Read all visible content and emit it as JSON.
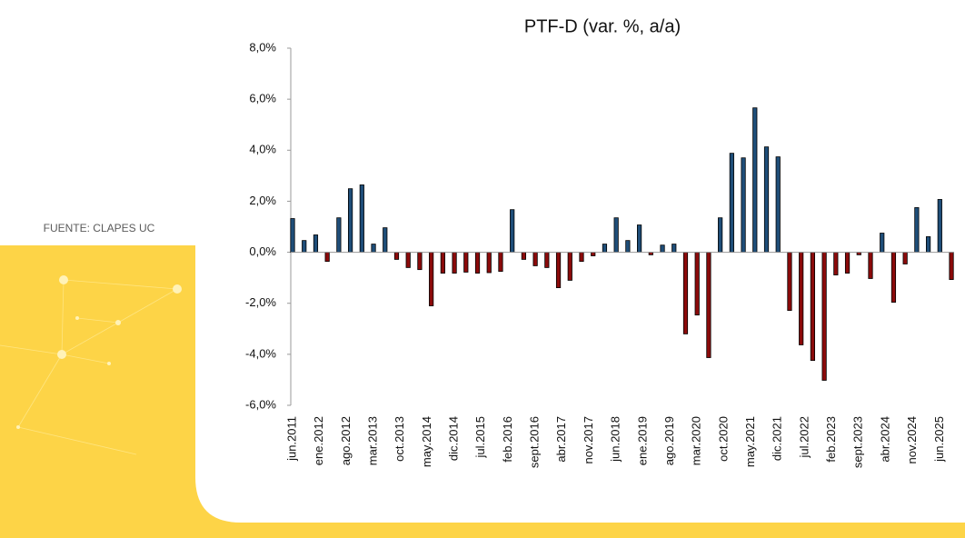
{
  "chart_data": {
    "type": "bar",
    "title": "PTF-D (var. %, a/a)",
    "source": "FUENTE: CLAPES UC",
    "x": [
      "2011-06",
      "2011-09",
      "2011-12",
      "2012-03",
      "2012-06",
      "2012-09",
      "2012-12",
      "2013-03",
      "2013-06",
      "2013-09",
      "2013-12",
      "2014-03",
      "2014-06",
      "2014-09",
      "2014-12",
      "2015-03",
      "2015-06",
      "2015-09",
      "2015-12",
      "2016-03",
      "2016-06",
      "2016-09",
      "2016-12",
      "2017-03",
      "2017-06",
      "2017-09",
      "2017-12",
      "2018-03",
      "2018-06",
      "2018-09",
      "2018-12",
      "2019-03",
      "2019-06",
      "2019-09",
      "2019-12",
      "2020-03",
      "2020-06",
      "2020-09",
      "2020-12",
      "2021-03",
      "2021-06",
      "2021-09",
      "2021-12",
      "2022-03",
      "2022-06",
      "2022-09",
      "2022-12",
      "2023-03",
      "2023-06",
      "2023-09",
      "2023-12",
      "2024-03",
      "2024-06",
      "2024-09",
      "2024-12",
      "2025-03",
      "2025-06",
      "2025-09"
    ],
    "values": [
      1.32,
      0.46,
      0.68,
      -0.36,
      1.35,
      2.49,
      2.64,
      0.32,
      0.96,
      -0.28,
      -0.6,
      -0.68,
      -2.1,
      -0.82,
      -0.82,
      -0.78,
      -0.82,
      -0.8,
      -0.75,
      1.67,
      -0.28,
      -0.53,
      -0.6,
      -1.39,
      -1.1,
      -0.36,
      -0.14,
      0.32,
      1.35,
      0.46,
      1.07,
      -0.1,
      0.28,
      0.32,
      -3.2,
      -2.46,
      -4.13,
      1.35,
      3.88,
      3.7,
      5.66,
      4.13,
      3.74,
      -2.28,
      -3.63,
      -4.24,
      -5.02,
      -0.89,
      -0.82,
      -0.1,
      -1.03,
      0.75,
      -1.96,
      -0.46,
      1.75,
      0.61,
      2.07,
      -1.07
    ],
    "xticks": [
      {
        "value": "2011-06",
        "label": "jun.2011"
      },
      {
        "value": "2012-01",
        "label": "ene.2012"
      },
      {
        "value": "2012-08",
        "label": "ago.2012"
      },
      {
        "value": "2013-03",
        "label": "mar.2013"
      },
      {
        "value": "2013-10",
        "label": "oct.2013"
      },
      {
        "value": "2014-05",
        "label": "may.2014"
      },
      {
        "value": "2014-12",
        "label": "dic.2014"
      },
      {
        "value": "2015-07",
        "label": "jul.2015"
      },
      {
        "value": "2016-02",
        "label": "feb.2016"
      },
      {
        "value": "2016-09",
        "label": "sept.2016"
      },
      {
        "value": "2017-04",
        "label": "abr.2017"
      },
      {
        "value": "2017-11",
        "label": "nov.2017"
      },
      {
        "value": "2018-06",
        "label": "jun.2018"
      },
      {
        "value": "2019-01",
        "label": "ene.2019"
      },
      {
        "value": "2019-08",
        "label": "ago.2019"
      },
      {
        "value": "2020-03",
        "label": "mar.2020"
      },
      {
        "value": "2020-10",
        "label": "oct.2020"
      },
      {
        "value": "2021-05",
        "label": "may.2021"
      },
      {
        "value": "2021-12",
        "label": "dic.2021"
      },
      {
        "value": "2022-07",
        "label": "jul.2022"
      },
      {
        "value": "2023-02",
        "label": "feb.2023"
      },
      {
        "value": "2023-09",
        "label": "sept.2023"
      },
      {
        "value": "2024-04",
        "label": "abr.2024"
      },
      {
        "value": "2024-11",
        "label": "nov.2024"
      },
      {
        "value": "2025-06",
        "label": "jun.2025"
      }
    ],
    "ylim": [
      -6,
      8
    ],
    "yticks": [
      {
        "value": -6,
        "label": "-6,0%"
      },
      {
        "value": -4,
        "label": "-4,0%"
      },
      {
        "value": -2,
        "label": "-2,0%"
      },
      {
        "value": 0,
        "label": "0,0%"
      },
      {
        "value": 2,
        "label": "2,0%"
      },
      {
        "value": 4,
        "label": "4,0%"
      },
      {
        "value": 6,
        "label": "6,0%"
      },
      {
        "value": 8,
        "label": "8,0%"
      }
    ],
    "positive_color": "#1f4e79",
    "negative_color": "#8b0a0a",
    "grid": false
  }
}
